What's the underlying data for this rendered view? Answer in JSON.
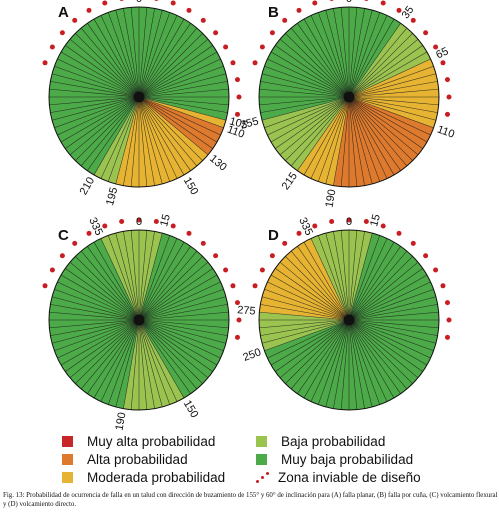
{
  "colors": {
    "muy_alta": "#c8272a",
    "alta": "#de7a2d",
    "moderada": "#e6b432",
    "baja": "#9bc350",
    "muy_baja": "#4daa48",
    "zona": "#c81e23"
  },
  "chart_data": [
    {
      "type": "polar-sectors",
      "panel": "A",
      "labels": [
        {
          "angle": 0,
          "text": "0"
        },
        {
          "angle": 105,
          "text": "105"
        },
        {
          "angle": 110,
          "text": "110"
        },
        {
          "angle": 130,
          "text": "130"
        },
        {
          "angle": 150,
          "text": "150"
        },
        {
          "angle": 195,
          "text": "195"
        },
        {
          "angle": 210,
          "text": "210"
        }
      ],
      "sectors": [
        {
          "from": 0,
          "to": 105,
          "class": "muy_baja"
        },
        {
          "from": 105,
          "to": 110,
          "class": "moderada"
        },
        {
          "from": 110,
          "to": 130,
          "class": "alta"
        },
        {
          "from": 130,
          "to": 150,
          "class": "moderada"
        },
        {
          "from": 150,
          "to": 195,
          "class": "moderada"
        },
        {
          "from": 195,
          "to": 210,
          "class": "baja"
        },
        {
          "from": 210,
          "to": 360,
          "class": "muy_baja"
        }
      ],
      "zona_from": 290,
      "zona_to": 100
    },
    {
      "type": "polar-sectors",
      "panel": "B",
      "labels": [
        {
          "angle": 0,
          "text": "0"
        },
        {
          "angle": 35,
          "text": "35"
        },
        {
          "angle": 65,
          "text": "65"
        },
        {
          "angle": 110,
          "text": "110"
        },
        {
          "angle": 190,
          "text": "190"
        },
        {
          "angle": 215,
          "text": "215"
        },
        {
          "angle": 255,
          "text": "255"
        }
      ],
      "sectors": [
        {
          "from": 0,
          "to": 35,
          "class": "muy_baja"
        },
        {
          "from": 35,
          "to": 65,
          "class": "baja"
        },
        {
          "from": 65,
          "to": 110,
          "class": "moderada"
        },
        {
          "from": 110,
          "to": 190,
          "class": "alta"
        },
        {
          "from": 190,
          "to": 215,
          "class": "moderada"
        },
        {
          "from": 215,
          "to": 255,
          "class": "baja"
        },
        {
          "from": 255,
          "to": 360,
          "class": "muy_baja"
        }
      ],
      "zona_from": 290,
      "zona_to": 100
    },
    {
      "type": "polar-sectors",
      "panel": "C",
      "labels": [
        {
          "angle": 0,
          "text": "0"
        },
        {
          "angle": 15,
          "text": "15"
        },
        {
          "angle": 150,
          "text": "150"
        },
        {
          "angle": 190,
          "text": "190"
        },
        {
          "angle": 335,
          "text": "335"
        }
      ],
      "sectors": [
        {
          "from": 0,
          "to": 15,
          "class": "baja"
        },
        {
          "from": 15,
          "to": 150,
          "class": "muy_baja"
        },
        {
          "from": 150,
          "to": 190,
          "class": "baja"
        },
        {
          "from": 190,
          "to": 335,
          "class": "muy_baja"
        },
        {
          "from": 335,
          "to": 360,
          "class": "baja"
        }
      ],
      "zona_from": 290,
      "zona_to": 100
    },
    {
      "type": "polar-sectors",
      "panel": "D",
      "labels": [
        {
          "angle": 0,
          "text": "0"
        },
        {
          "angle": 15,
          "text": "15"
        },
        {
          "angle": 250,
          "text": "250"
        },
        {
          "angle": 275,
          "text": "275"
        },
        {
          "angle": 335,
          "text": "335"
        }
      ],
      "sectors": [
        {
          "from": 0,
          "to": 15,
          "class": "baja"
        },
        {
          "from": 15,
          "to": 250,
          "class": "muy_baja"
        },
        {
          "from": 250,
          "to": 275,
          "class": "baja"
        },
        {
          "from": 275,
          "to": 335,
          "class": "moderada"
        },
        {
          "from": 335,
          "to": 360,
          "class": "baja"
        }
      ],
      "zona_from": 290,
      "zona_to": 100
    }
  ],
  "legend": {
    "muy_alta": "Muy alta probabilidad",
    "alta": "Alta probabilidad",
    "moderada": "Moderada probabilidad",
    "baja": "Baja probabilidad",
    "muy_baja": "Muy baja probabilidad",
    "zona": "Zona inviable de diseño"
  },
  "caption": "Fig. 13: Probabilidad de ocurrencia de falla en un talud con dirección de buzamiento de 155° y 60° de inclinación para (A) falla planar, (B) falla por cuña, (C) volcamiento flexural y (D) volcamiento directo."
}
